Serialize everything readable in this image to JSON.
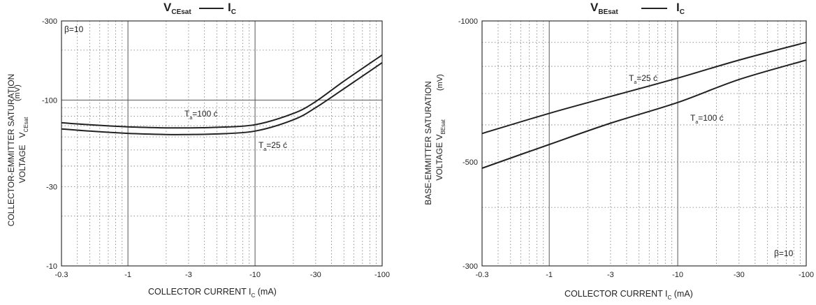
{
  "chart_data": [
    {
      "type": "line",
      "title": {
        "main": "V",
        "main_sub": "CEsat",
        "x": "I",
        "x_sub": "C"
      },
      "xlabel": "COLLECTOR CURRENT I",
      "xlabel_sub": "C",
      "xlabel_unit": " (mA)",
      "ylabel_line1": "COLLECTOR-EMMITTER SATURATION",
      "ylabel_line2": "VOLTAGE",
      "ylabel_sym": "V",
      "ylabel_sub": "CEsat",
      "ylabel_unit": "(mV)",
      "x_scale": "log",
      "y_scale": "log",
      "xlim": [
        0.3,
        100
      ],
      "ylim": [
        10,
        300
      ],
      "xticks": [
        {
          "v": 0.3,
          "label": "-0.3"
        },
        {
          "v": 1,
          "label": "-1"
        },
        {
          "v": 3,
          "label": "-3"
        },
        {
          "v": 10,
          "label": "-10"
        },
        {
          "v": 30,
          "label": "-30"
        },
        {
          "v": 100,
          "label": "-100"
        }
      ],
      "yticks": [
        {
          "v": 300,
          "label": "-300"
        },
        {
          "v": 100,
          "label": "-100"
        },
        {
          "v": 30,
          "label": "-30"
        },
        {
          "v": 10,
          "label": "-10"
        }
      ],
      "note": "β=10",
      "series": [
        {
          "name": "T",
          "name_sub": "a",
          "name_rest": "=100 ć",
          "x": [
            0.3,
            0.5,
            1,
            2,
            3,
            5,
            10,
            20,
            30,
            50,
            100
          ],
          "y": [
            73,
            71,
            69,
            68,
            68,
            68.5,
            71,
            83,
            98,
            130,
            187
          ]
        },
        {
          "name": "T",
          "name_sub": "a",
          "name_rest": "=25 ć",
          "x": [
            0.3,
            0.5,
            1,
            2,
            3,
            5,
            10,
            20,
            30,
            50,
            100
          ],
          "y": [
            67,
            65,
            63,
            62,
            62,
            62.5,
            65,
            76,
            90,
            117,
            168
          ]
        }
      ]
    },
    {
      "type": "line",
      "title": {
        "main": "V",
        "main_sub": "BEsat",
        "x": "I",
        "x_sub": "C"
      },
      "xlabel": "COLLECTOR CURRENT I",
      "xlabel_sub": "C",
      "xlabel_unit": " (mA)",
      "ylabel_line1": "BASE-EMMITTER SATURATION",
      "ylabel_line2": "VOLTAGE  V",
      "ylabel_sym": "",
      "ylabel_sub": "BEsat",
      "ylabel_unit": "(mV)",
      "x_scale": "log",
      "y_scale": "log",
      "xlim": [
        0.3,
        100
      ],
      "ylim": [
        300,
        1000
      ],
      "xticks": [
        {
          "v": 0.3,
          "label": "-0.3"
        },
        {
          "v": 1,
          "label": "-1"
        },
        {
          "v": 3,
          "label": "-3"
        },
        {
          "v": 10,
          "label": "-10"
        },
        {
          "v": 30,
          "label": "-30"
        },
        {
          "v": 100,
          "label": "-100"
        }
      ],
      "yticks": [
        {
          "v": 1000,
          "label": "-1000"
        },
        {
          "v": 500,
          "label": "-500"
        },
        {
          "v": 300,
          "label": "-300"
        }
      ],
      "note": "β=10",
      "series": [
        {
          "name": "T",
          "name_sub": "a",
          "name_rest": "=25 ć",
          "x": [
            0.3,
            1,
            3,
            10,
            30,
            100
          ],
          "y": [
            575,
            635,
            690,
            755,
            825,
            900
          ]
        },
        {
          "name": "T",
          "name_sub": "a",
          "name_rest": "=100 ć",
          "x": [
            0.3,
            1,
            3,
            10,
            30,
            100
          ],
          "y": [
            485,
            545,
            605,
            670,
            750,
            825
          ]
        }
      ]
    }
  ]
}
